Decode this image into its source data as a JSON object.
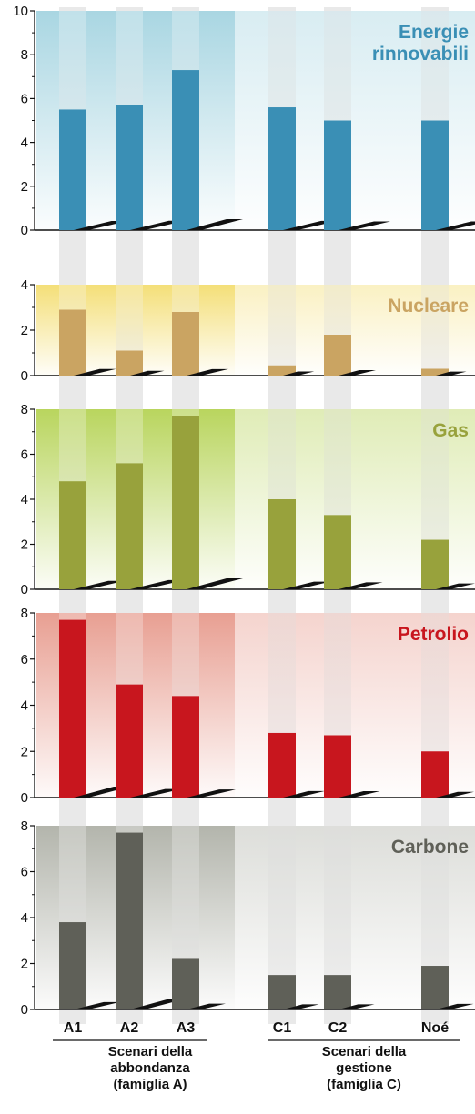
{
  "chart_data": {
    "type": "bar",
    "categories": [
      "A1",
      "A2",
      "A3",
      "C1",
      "C2",
      "Noé"
    ],
    "groups": [
      {
        "label": [
          "Scenari della",
          "abbondanza",
          "(famiglia A)"
        ],
        "categories": [
          "A1",
          "A2",
          "A3"
        ]
      },
      {
        "label": [
          "Scenari della",
          "gestione",
          "(famiglia C)"
        ],
        "categories": [
          "C1",
          "C2",
          "Noé"
        ]
      }
    ],
    "panels": [
      {
        "title": [
          "Energie",
          "rinnovabili"
        ],
        "color": "#3a8fb5",
        "bg": "#a9d6e2",
        "values": [
          5.5,
          5.7,
          7.3,
          5.6,
          5.0,
          5.0
        ],
        "ylim": [
          0,
          10
        ],
        "yticks": [
          "0",
          "2",
          "4",
          "6",
          "8",
          "10"
        ]
      },
      {
        "title": [
          "Nucleare"
        ],
        "color": "#caa462",
        "bg": "#f4df78",
        "values": [
          2.9,
          1.1,
          2.8,
          0.45,
          1.8,
          0.3
        ],
        "ylim": [
          0,
          4
        ],
        "yticks": [
          "0",
          "2",
          "4"
        ]
      },
      {
        "title": [
          "Gas"
        ],
        "color": "#98a23c",
        "bg": "#b9d55e",
        "values": [
          4.8,
          5.6,
          7.7,
          4.0,
          3.3,
          2.2
        ],
        "ylim": [
          0,
          8
        ],
        "yticks": [
          "0",
          "2",
          "4",
          "6",
          "8"
        ]
      },
      {
        "title": [
          "Petrolio"
        ],
        "color": "#c8161e",
        "bg": "#e89f92",
        "values": [
          7.7,
          4.9,
          4.4,
          2.8,
          2.7,
          2.0
        ],
        "ylim": [
          0,
          8
        ],
        "yticks": [
          "0",
          "2",
          "4",
          "6",
          "8"
        ]
      },
      {
        "title": [
          "Carbone"
        ],
        "color": "#5f6058",
        "bg": "#b3b5ac",
        "values": [
          3.8,
          7.7,
          2.2,
          1.5,
          1.5,
          1.9
        ],
        "ylim": [
          0,
          8
        ],
        "yticks": [
          "0",
          "2",
          "4",
          "6",
          "8"
        ]
      }
    ]
  }
}
